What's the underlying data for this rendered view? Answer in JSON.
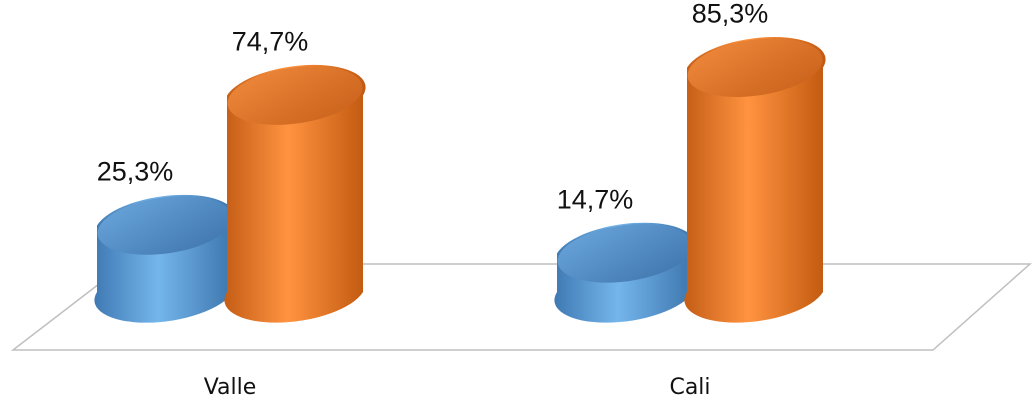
{
  "chart_data": {
    "type": "bar",
    "style": "3d-cylinder",
    "categories": [
      "Valle",
      "Cali"
    ],
    "series": [
      {
        "values": [
          25.3,
          14.7
        ],
        "labels": [
          "25,3%",
          "14,7%"
        ],
        "color": "#5b9bd5"
      },
      {
        "values": [
          74.7,
          85.3
        ],
        "labels": [
          "74,7%",
          "85,3%"
        ],
        "color": "#ed7d31"
      }
    ],
    "ylim": [
      0,
      100
    ],
    "grid": false,
    "legend": "none"
  }
}
